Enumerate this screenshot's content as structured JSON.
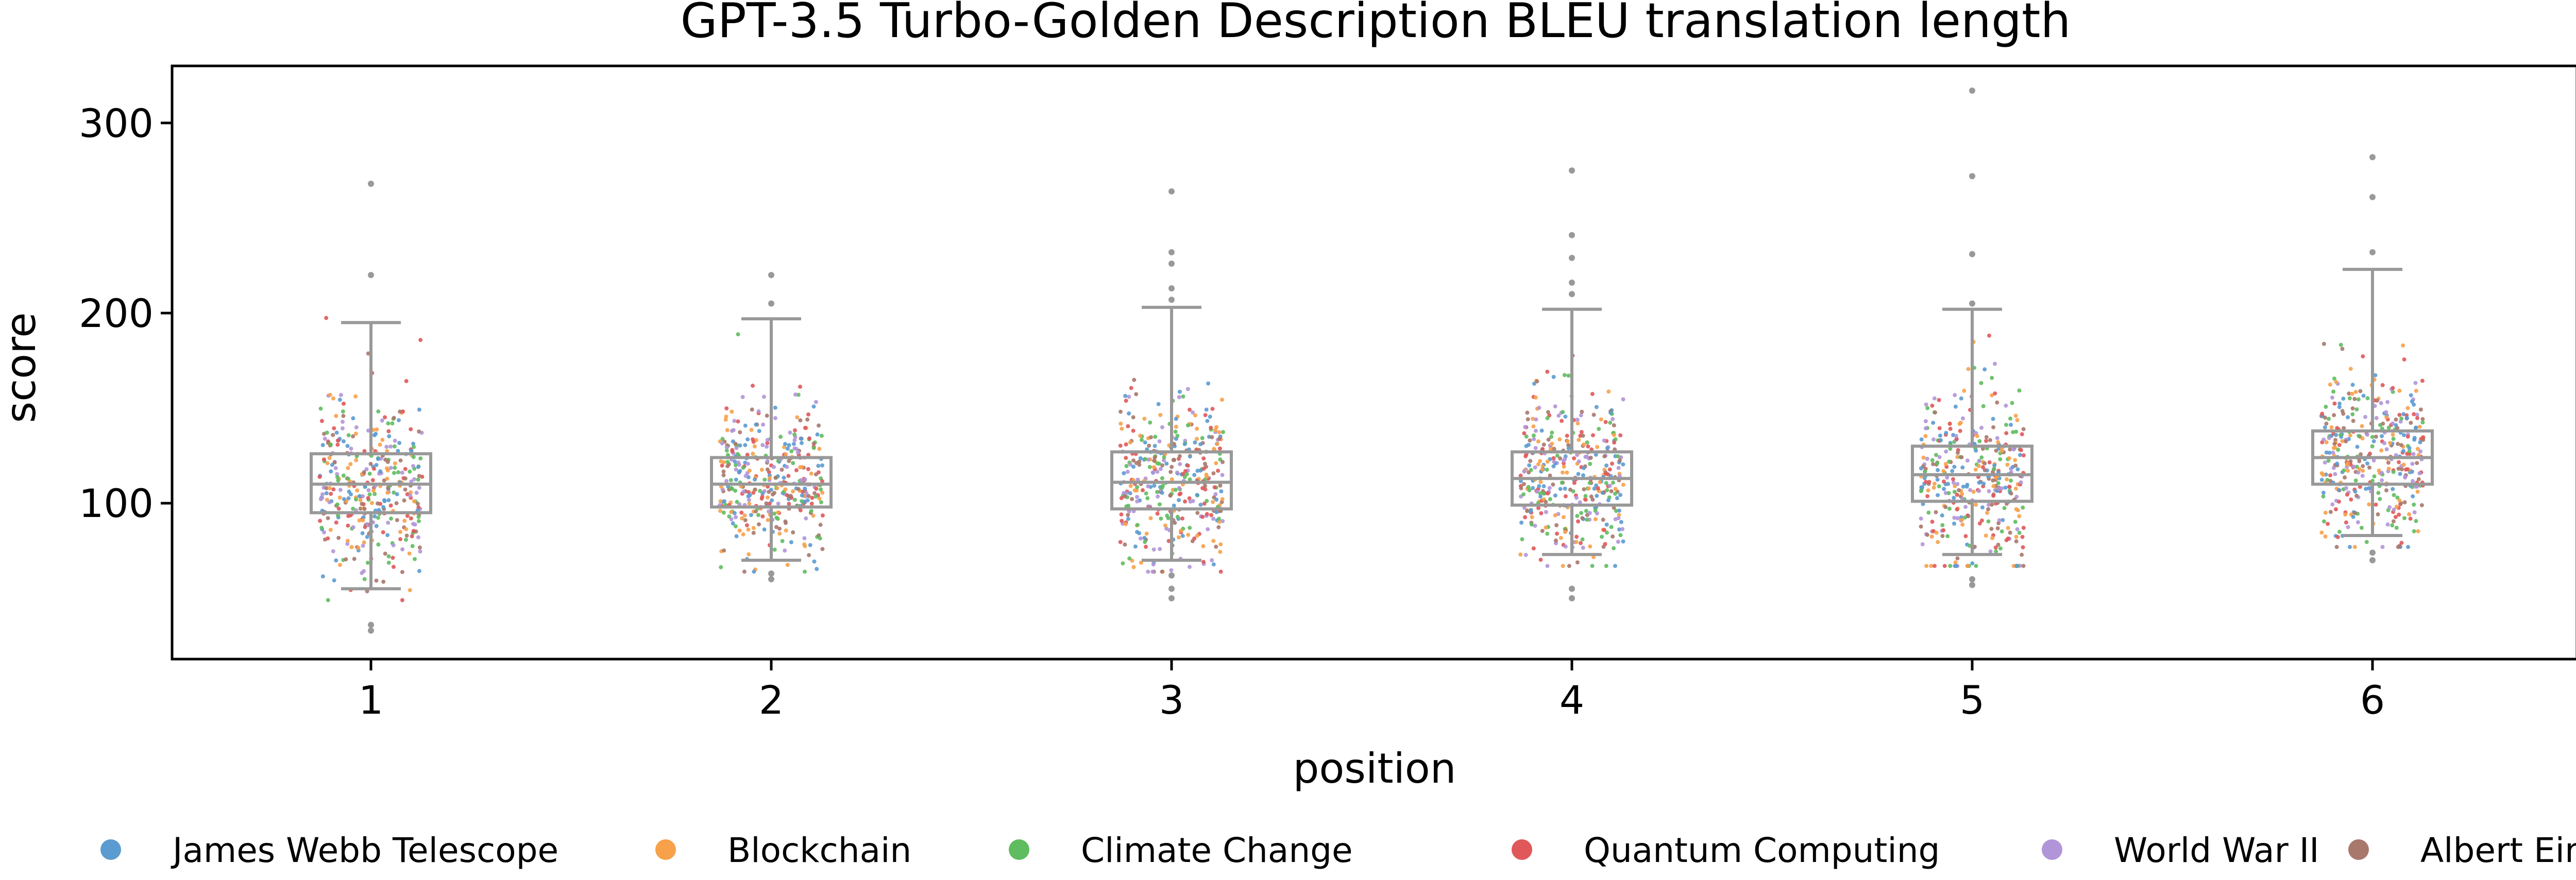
{
  "chart_data": {
    "type": "box",
    "overlay": "strip",
    "title": "GPT-3.5 Turbo-Golden Description BLEU translation length",
    "xlabel": "position",
    "ylabel": "score",
    "categories": [
      "1",
      "2",
      "3",
      "4",
      "5",
      "6"
    ],
    "y_ticks": [
      100,
      200,
      300
    ],
    "ylim": [
      18,
      330
    ],
    "grid": false,
    "legend_position": "bottom",
    "box_color": "#999999",
    "boxes": [
      {
        "position": "1",
        "whisker_low": 55,
        "q1": 95,
        "median": 110,
        "q3": 126,
        "whisker_high": 195,
        "outliers": [
          220,
          268,
          33,
          36
        ]
      },
      {
        "position": "2",
        "whisker_low": 70,
        "q1": 98,
        "median": 110,
        "q3": 124,
        "whisker_high": 197,
        "outliers": [
          205,
          220,
          60,
          63
        ]
      },
      {
        "position": "3",
        "whisker_low": 70,
        "q1": 97,
        "median": 111,
        "q3": 127,
        "whisker_high": 203,
        "outliers": [
          207,
          213,
          226,
          232,
          264,
          50,
          55,
          62
        ]
      },
      {
        "position": "4",
        "whisker_low": 73,
        "q1": 99,
        "median": 113,
        "q3": 127,
        "whisker_high": 202,
        "outliers": [
          210,
          216,
          229,
          241,
          275,
          50,
          55
        ]
      },
      {
        "position": "5",
        "whisker_low": 73,
        "q1": 101,
        "median": 115,
        "q3": 130,
        "whisker_high": 202,
        "outliers": [
          205,
          231,
          272,
          317,
          57,
          60
        ]
      },
      {
        "position": "6",
        "whisker_low": 83,
        "q1": 110,
        "median": 124,
        "q3": 138,
        "whisker_high": 223,
        "outliers": [
          232,
          261,
          282,
          70,
          74
        ]
      }
    ],
    "series": [
      {
        "name": "James Webb Telescope",
        "color": "#5b9bd0"
      },
      {
        "name": "Blockchain",
        "color": "#f7a14a"
      },
      {
        "name": "Climate Change",
        "color": "#5fbd5f"
      },
      {
        "name": "Quantum Computing",
        "color": "#e0585a"
      },
      {
        "name": "World War II",
        "color": "#b195d8"
      },
      {
        "name": "Albert Einstein",
        "color": "#a8786d"
      }
    ]
  }
}
